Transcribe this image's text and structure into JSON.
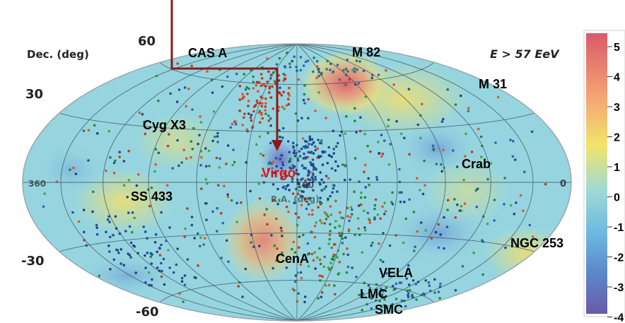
{
  "chart_data": {
    "type": "heatmap",
    "projection": "hammer-aitoff",
    "title": "",
    "energy_label": "E > 57 EeV",
    "ylabel": "Dec. (deg)",
    "xlabel": "R.A. (deg)",
    "x_ticks": [
      "360",
      "180",
      "0"
    ],
    "y_ticks": [
      "60",
      "30",
      "-30",
      "-60"
    ],
    "colorbar": {
      "ticks": [
        "5",
        "4",
        "3",
        "2",
        "1",
        "0",
        "-1",
        "-2",
        "-3",
        "-4"
      ],
      "range": [
        -4,
        5
      ],
      "colors": [
        "#7e74b4",
        "#5aa0d6",
        "#8fd3e2",
        "#f2e46a",
        "#f4a070",
        "#e0626e"
      ]
    },
    "annotations": [
      {
        "label": "CAS A",
        "ra": 350,
        "dec": 58.8
      },
      {
        "label": "M 82",
        "ra": 148.9,
        "dec": 69.7
      },
      {
        "label": "M 31",
        "ra": 10.7,
        "dec": 41.3
      },
      {
        "label": "Cyg X3",
        "ra": 308.1,
        "dec": 41.0
      },
      {
        "label": "Virgo",
        "ra": 187.7,
        "dec": 12.4,
        "highlight": true,
        "color": "#e81010"
      },
      {
        "label": "Crab",
        "ra": 83.6,
        "dec": 22.0
      },
      {
        "label": "SS 433",
        "ra": 288.0,
        "dec": 5.0
      },
      {
        "label": "CenA",
        "ra": 201.4,
        "dec": -43.0
      },
      {
        "label": "NGC 253",
        "ra": 11.9,
        "dec": -25.3
      },
      {
        "label": "VELA",
        "ra": 128.8,
        "dec": -45.2
      },
      {
        "label": "LMC",
        "ra": 80.9,
        "dec": -69.8
      },
      {
        "label": "SMC",
        "ra": 13.2,
        "dec": -72.8
      }
    ],
    "hotspots": [
      {
        "ra": 150,
        "dec": 45,
        "significance": 5
      },
      {
        "ra": 205,
        "dec": -35,
        "significance": 4
      },
      {
        "ra": 300,
        "dec": 0,
        "significance": 2
      },
      {
        "ra": 20,
        "dec": -35,
        "significance": 2
      }
    ],
    "coldspots": [
      {
        "ra": 185,
        "dec": 10,
        "significance": -4
      },
      {
        "ra": 95,
        "dec": 20,
        "significance": -3
      },
      {
        "ra": 95,
        "dec": -30,
        "significance": -3
      }
    ],
    "grid": true,
    "arrow": {
      "points_to": "Virgo",
      "color": "#8b1a1a"
    }
  }
}
